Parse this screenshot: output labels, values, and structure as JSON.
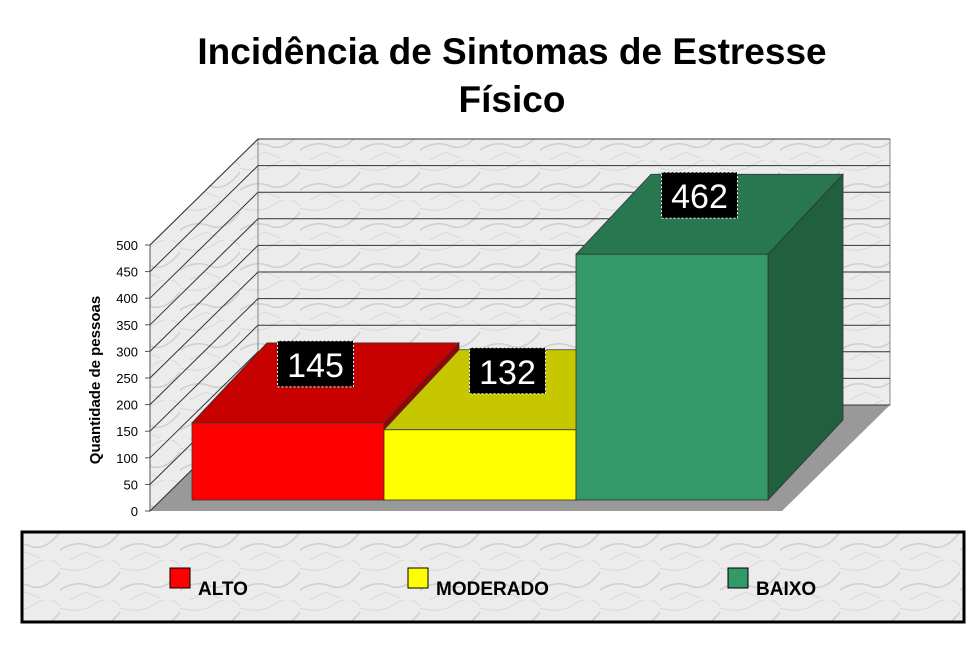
{
  "chart_data": {
    "type": "bar3d",
    "title": "Incidência de Sintomas de Estresse Físico",
    "y_label": "Quantidade de pessoas",
    "series": [
      {
        "name": "ALTO",
        "color": "#ff0000",
        "values": [
          145
        ]
      },
      {
        "name": "MODERADO",
        "color": "#ffff00",
        "values": [
          132
        ]
      },
      {
        "name": "BAIXO",
        "color": "#339966",
        "values": [
          462
        ]
      }
    ],
    "ylim": [
      0,
      500
    ],
    "yticks": [
      0,
      50,
      100,
      150,
      200,
      250,
      300,
      350,
      400,
      450,
      500
    ],
    "grid": true,
    "legend": "bottom"
  }
}
